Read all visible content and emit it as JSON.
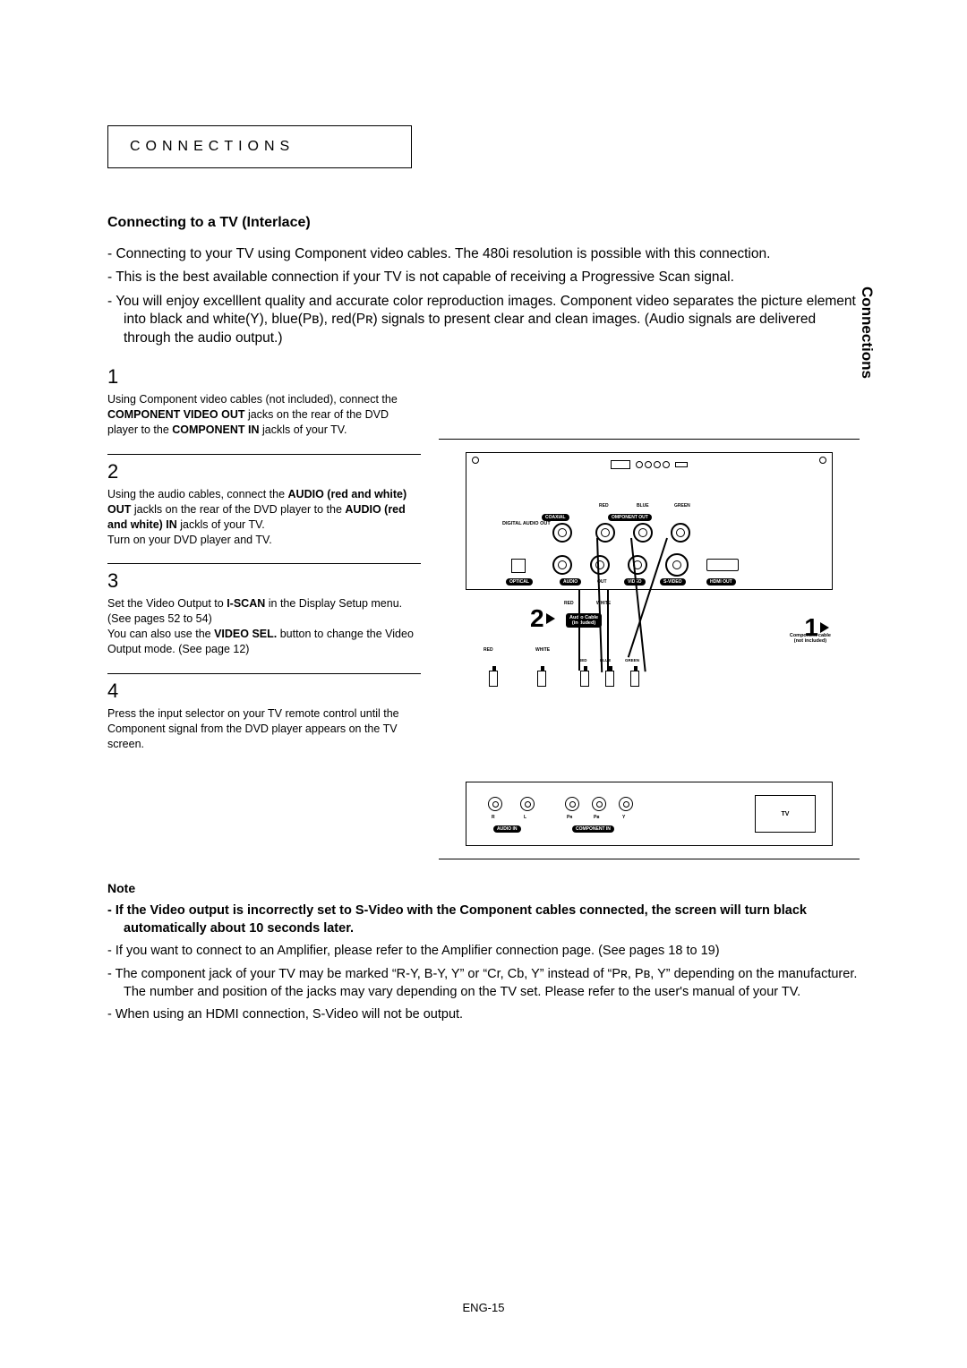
{
  "section_label": "CONNECTIONS",
  "side_tab": "Connections",
  "subheading": "Connecting to a TV (Interlace)",
  "intro": [
    "Connecting to your TV using Component video cables. The 480i resolution is possible with this connection.",
    "This is the best available connection if your TV is not capable of receiving a Progressive Scan signal.",
    "You will enjoy excelllent quality and accurate color reproduction images. Component video separates the picture element into black and white(Y), blue(Pʙ), red(Pʀ) signals to present clear and clean images. (Audio signals are delivered through the audio output.)"
  ],
  "steps": [
    {
      "num": "1",
      "html": "Using Component video cables (not included), connect the <b>COMPONENT VIDEO OUT</b> jacks on the rear of the DVD player to the <b>COMPONENT IN</b> jackls of your TV."
    },
    {
      "num": "2",
      "html": "Using the audio cables, connect the <b>AUDIO (red and white) OUT</b> jackls on the rear of the DVD player to the <b>AUDIO (red and white) IN</b> jackls of your TV.<br>Turn on your DVD player and TV."
    },
    {
      "num": "3",
      "html": "Set the Video Output to <b>I-SCAN</b> in the Display Setup menu. (See pages 52 to 54)<br>You can also use the <b>VIDEO SEL.</b> button to change the Video Output mode. (See page 12)"
    },
    {
      "num": "4",
      "html": "Press the input selector on your TV remote control until the Component signal from the DVD player appears on the TV screen."
    }
  ],
  "diagram": {
    "top_labels": {
      "red": "RED",
      "blue": "BLUE",
      "green": "GREEN",
      "white": "WHITE"
    },
    "strips": {
      "coaxial": "COAXIAL",
      "component_out": "OMPONENT OUT",
      "digital_audio": "DIGITAL\nAUDIO OUT",
      "optical": "OPTICAL",
      "audio": "AUDIO",
      "out": "OUT",
      "video": "VIDEO",
      "svideo": "S-VIDEO",
      "hdmi_out": "HDMI OUT"
    },
    "callouts": {
      "one": "1",
      "two": "2"
    },
    "cable_labels": {
      "audio_cable": "Audio Cable\n(included)",
      "component_cable": "Component cable\n(not included)"
    },
    "tv": {
      "box": "TV",
      "audio_in": "AUDIO IN",
      "component_in": "COMPONENT IN",
      "r": "R",
      "l": "L",
      "pr": "Pʀ",
      "pb": "Pʙ",
      "y": "Y"
    }
  },
  "note_heading": "Note",
  "notes": [
    {
      "bold": true,
      "text": "If the Video output is incorrectly set to S-Video with the Component cables connected, the screen will turn black automatically about 10 seconds later."
    },
    {
      "bold": false,
      "text": "If you want to connect to an Amplifier, please refer to the Amplifier connection page. (See pages 18 to 19)"
    },
    {
      "bold": false,
      "text": "The component jack of your TV may be marked “R-Y, B-Y, Y” or “Cr, Cb, Y” instead of “Pʀ, Pʙ, Y” depending on the manufacturer. The number and position of the jacks may vary depending on the TV set. Please refer to the user's manual of your TV."
    },
    {
      "bold": false,
      "text": "When using an HDMI connection, S-Video will not be output."
    }
  ],
  "page_number": "ENG-15"
}
